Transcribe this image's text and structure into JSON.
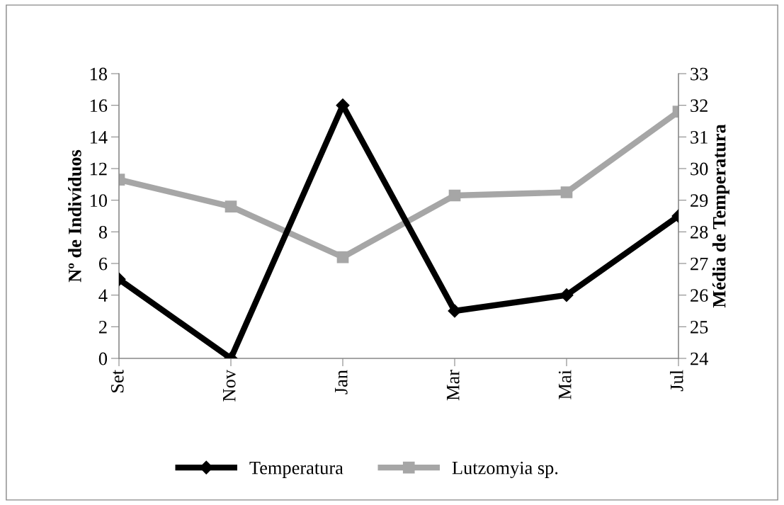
{
  "chart_data": {
    "type": "line",
    "ylabel": "Nº de Indivíduos",
    "y2label": "Média de Temperatura",
    "categories": [
      "Set",
      "Nov",
      "Jan",
      "Mar",
      "Mai",
      "Jul"
    ],
    "series": [
      {
        "name": "Temperatura",
        "color": "#000000",
        "marker": "diamond",
        "values": [
          5,
          0,
          16,
          3,
          4,
          9
        ]
      },
      {
        "name": "Lutzomyia sp.",
        "color": "#a6a6a6",
        "marker": "square",
        "axis": "y2",
        "values": [
          29.65,
          28.8,
          27.2,
          29.15,
          29.25,
          31.8
        ]
      }
    ],
    "ylim": [
      0,
      18
    ],
    "yticks": [
      0,
      2,
      4,
      6,
      8,
      10,
      12,
      14,
      16,
      18
    ],
    "y2lim": [
      24,
      33
    ],
    "y2ticks": [
      24,
      25,
      26,
      27,
      28,
      29,
      30,
      31,
      32,
      33
    ],
    "grid": false,
    "legend": "bottom"
  }
}
